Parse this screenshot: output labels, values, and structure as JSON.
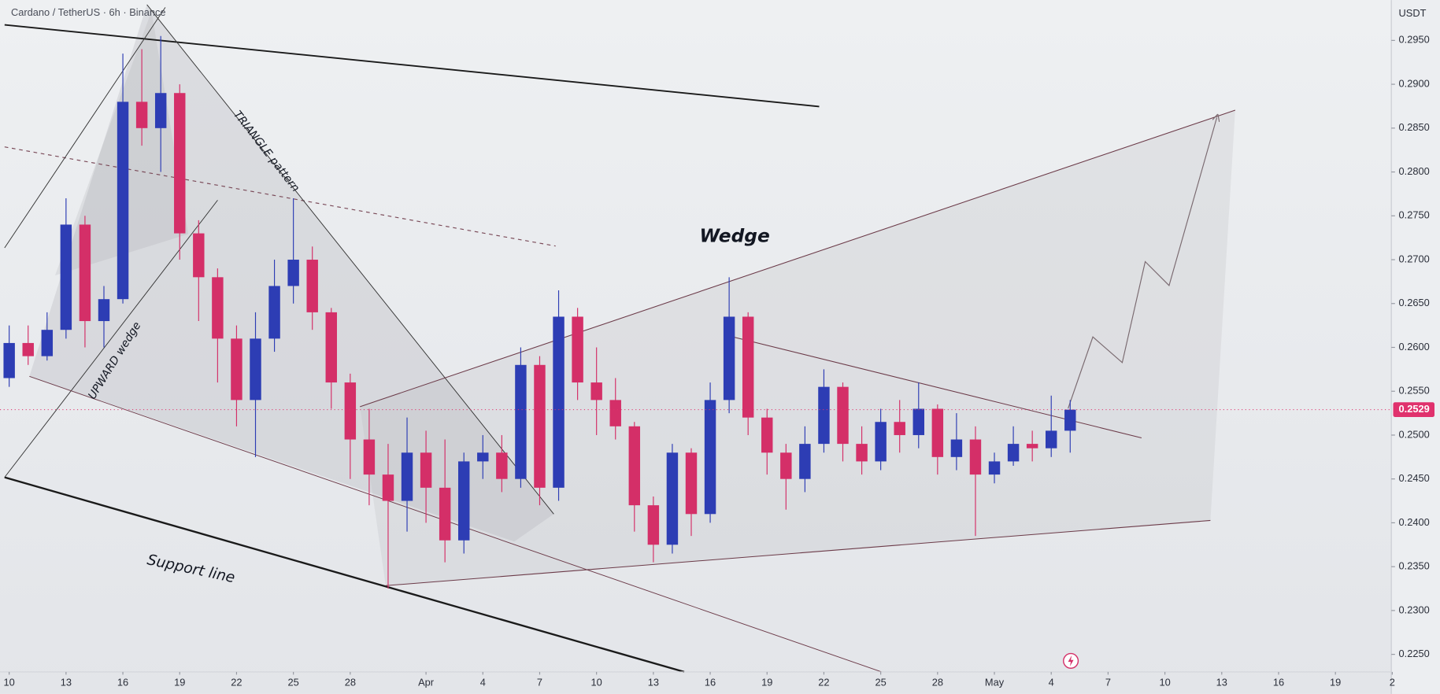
{
  "chart_data": {
    "type": "candlestick",
    "title": "Cardano / TetherUS · 6h · Binance",
    "y_axis_label": "USDT",
    "x": [
      0,
      1,
      2,
      3,
      4,
      5,
      6,
      7,
      8,
      9,
      10,
      11,
      12,
      13,
      14,
      15,
      16,
      17,
      18,
      19,
      20,
      21,
      22,
      23,
      24,
      25,
      26,
      27,
      28,
      29,
      30,
      31,
      32,
      33,
      34,
      35,
      36,
      37,
      38,
      39,
      40,
      41,
      42,
      43,
      44,
      45,
      46,
      47,
      48,
      49,
      50,
      51,
      52,
      53,
      54,
      55,
      56
    ],
    "open": [
      0.2565,
      0.2605,
      0.259,
      0.262,
      0.274,
      0.263,
      0.2655,
      0.288,
      0.285,
      0.289,
      0.273,
      0.268,
      0.261,
      0.254,
      0.261,
      0.267,
      0.27,
      0.264,
      0.256,
      0.2495,
      0.2455,
      0.2425,
      0.248,
      0.244,
      0.238,
      0.247,
      0.248,
      0.245,
      0.258,
      0.244,
      0.2635,
      0.256,
      0.254,
      0.251,
      0.242,
      0.2375,
      0.248,
      0.241,
      0.254,
      0.2635,
      0.252,
      0.248,
      0.245,
      0.249,
      0.2555,
      0.249,
      0.247,
      0.2515,
      0.25,
      0.253,
      0.2475,
      0.2495,
      0.2455,
      0.247,
      0.249,
      0.2485,
      0.2505
    ],
    "high": [
      0.2625,
      0.2625,
      0.264,
      0.277,
      0.275,
      0.267,
      0.2935,
      0.294,
      0.2955,
      0.29,
      0.2745,
      0.269,
      0.2625,
      0.264,
      0.27,
      0.277,
      0.2715,
      0.2645,
      0.257,
      0.253,
      0.249,
      0.252,
      0.2505,
      0.2495,
      0.248,
      0.25,
      0.25,
      0.26,
      0.259,
      0.2665,
      0.2645,
      0.26,
      0.2565,
      0.2515,
      0.243,
      0.249,
      0.2485,
      0.256,
      0.268,
      0.264,
      0.253,
      0.249,
      0.251,
      0.2575,
      0.256,
      0.251,
      0.253,
      0.254,
      0.256,
      0.2535,
      0.2525,
      0.251,
      0.248,
      0.251,
      0.2505,
      0.2545,
      0.254
    ],
    "low": [
      0.2555,
      0.258,
      0.2585,
      0.261,
      0.26,
      0.26,
      0.265,
      0.283,
      0.28,
      0.27,
      0.263,
      0.256,
      0.251,
      0.2475,
      0.2595,
      0.265,
      0.262,
      0.253,
      0.245,
      0.242,
      0.2325,
      0.239,
      0.24,
      0.2355,
      0.2365,
      0.245,
      0.2435,
      0.244,
      0.242,
      0.2425,
      0.254,
      0.25,
      0.2495,
      0.239,
      0.2355,
      0.2365,
      0.2385,
      0.24,
      0.2525,
      0.25,
      0.2455,
      0.2415,
      0.2435,
      0.248,
      0.247,
      0.2455,
      0.246,
      0.248,
      0.2485,
      0.2455,
      0.246,
      0.2385,
      0.2445,
      0.2465,
      0.247,
      0.2475,
      0.248
    ],
    "close": [
      0.2605,
      0.259,
      0.262,
      0.274,
      0.263,
      0.2655,
      0.288,
      0.285,
      0.289,
      0.273,
      0.268,
      0.261,
      0.254,
      0.261,
      0.267,
      0.27,
      0.264,
      0.256,
      0.2495,
      0.2455,
      0.2425,
      0.248,
      0.244,
      0.238,
      0.247,
      0.248,
      0.245,
      0.258,
      0.244,
      0.2635,
      0.256,
      0.254,
      0.251,
      0.242,
      0.2375,
      0.248,
      0.241,
      0.254,
      0.2635,
      0.252,
      0.248,
      0.245,
      0.249,
      0.2555,
      0.249,
      0.247,
      0.2515,
      0.25,
      0.253,
      0.2475,
      0.2495,
      0.2455,
      0.247,
      0.249,
      0.2485,
      0.2505,
      0.2529
    ],
    "up_color": "#2d3db4",
    "down_color": "#d42f68",
    "xlim": [
      -0.485,
      72.95
    ],
    "ylim": [
      0.223,
      0.2996
    ],
    "xticks": [
      {
        "value": 0,
        "label": "10"
      },
      {
        "value": 3,
        "label": "13"
      },
      {
        "value": 6,
        "label": "16"
      },
      {
        "value": 9,
        "label": "19"
      },
      {
        "value": 12,
        "label": "22"
      },
      {
        "value": 15,
        "label": "25"
      },
      {
        "value": 18,
        "label": "28"
      },
      {
        "value": 22,
        "label": "Apr"
      },
      {
        "value": 25,
        "label": "4"
      },
      {
        "value": 28,
        "label": "7"
      },
      {
        "value": 31,
        "label": "10"
      },
      {
        "value": 34,
        "label": "13"
      },
      {
        "value": 37,
        "label": "16"
      },
      {
        "value": 40,
        "label": "19"
      },
      {
        "value": 43,
        "label": "22"
      },
      {
        "value": 46,
        "label": "25"
      },
      {
        "value": 49,
        "label": "28"
      },
      {
        "value": 52,
        "label": "May"
      },
      {
        "value": 55,
        "label": "4"
      },
      {
        "value": 58,
        "label": "7"
      },
      {
        "value": 61,
        "label": "10"
      },
      {
        "value": 64,
        "label": "13"
      },
      {
        "value": 67,
        "label": "16"
      },
      {
        "value": 70,
        "label": "19"
      },
      {
        "value": 73,
        "label": "2"
      }
    ],
    "yticks": [
      {
        "value": 0.225,
        "label": "0.2250"
      },
      {
        "value": 0.23,
        "label": "0.2300"
      },
      {
        "value": 0.235,
        "label": "0.2350"
      },
      {
        "value": 0.24,
        "label": "0.2400"
      },
      {
        "value": 0.245,
        "label": "0.2450"
      },
      {
        "value": 0.25,
        "label": "0.2500"
      },
      {
        "value": 0.255,
        "label": "0.2550"
      },
      {
        "value": 0.26,
        "label": "0.2600"
      },
      {
        "value": 0.265,
        "label": "0.2650"
      },
      {
        "value": 0.27,
        "label": "0.2700"
      },
      {
        "value": 0.275,
        "label": "0.2750"
      },
      {
        "value": 0.28,
        "label": "0.2800"
      },
      {
        "value": 0.285,
        "label": "0.2850"
      },
      {
        "value": 0.29,
        "label": "0.2900"
      },
      {
        "value": 0.295,
        "label": "0.2950"
      }
    ],
    "last_price": 0.2529,
    "last_price_color": "#e0316d",
    "annotations": [
      "Wedge",
      "Support line",
      "TRIANGLE pattern",
      "UPWARD wedge"
    ]
  }
}
